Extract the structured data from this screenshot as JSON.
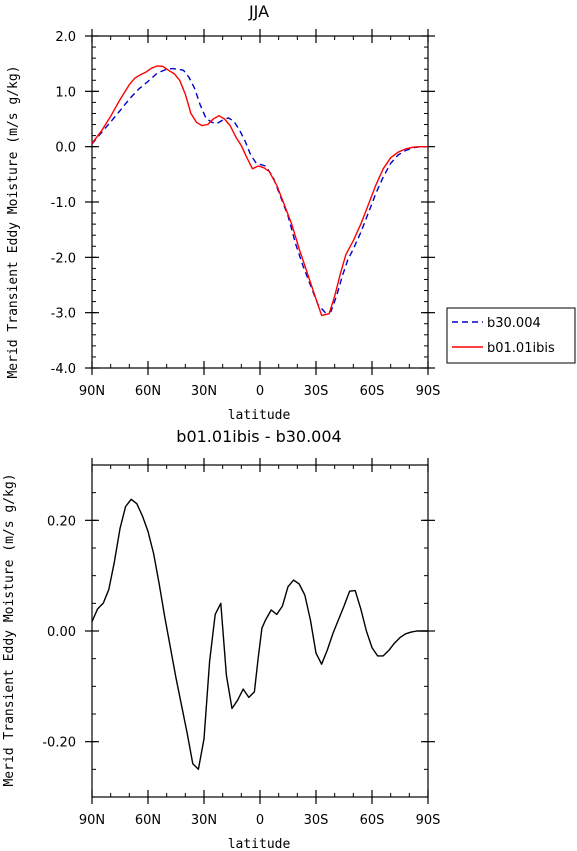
{
  "chart_data": [
    {
      "type": "line",
      "title": "JJA",
      "xlabel": "latitude",
      "ylabel": "Merid Transient Eddy Moisture (m/s g/kg)",
      "x_tick_labels": [
        "90N",
        "60N",
        "30N",
        "0",
        "30S",
        "60S",
        "90S"
      ],
      "x_tick_values": [
        -90,
        -60,
        -30,
        0,
        30,
        60,
        90
      ],
      "y_tick_labels": [
        "2.0",
        "1.0",
        "0.0",
        "-1.0",
        "-2.0",
        "-3.0",
        "-4.0"
      ],
      "y_tick_values": [
        2,
        1,
        0,
        -1,
        -2,
        -3,
        -4
      ],
      "xlim": [
        -90,
        90
      ],
      "ylim": [
        -4,
        2
      ],
      "grid": false,
      "legend_position": "right-outside",
      "series": [
        {
          "name": "b30.004",
          "color": "#0000cc",
          "dash": "dashed",
          "x": [
            -90,
            -85,
            -80,
            -75,
            -70,
            -65,
            -60,
            -55,
            -50,
            -47,
            -44,
            -41,
            -38,
            -35,
            -32,
            -29,
            -26,
            -23,
            -20,
            -17,
            -14,
            -11,
            -8,
            -5,
            -2,
            0,
            3,
            7,
            11,
            15,
            19,
            23,
            27,
            31,
            35,
            38,
            41,
            44,
            47,
            50,
            54,
            58,
            62,
            66,
            70,
            74,
            78,
            82,
            86,
            90
          ],
          "y": [
            0.05,
            0.25,
            0.45,
            0.65,
            0.86,
            1.04,
            1.18,
            1.33,
            1.4,
            1.41,
            1.4,
            1.38,
            1.25,
            1.05,
            0.75,
            0.52,
            0.44,
            0.42,
            0.48,
            0.52,
            0.46,
            0.3,
            0.1,
            -0.15,
            -0.3,
            -0.32,
            -0.35,
            -0.55,
            -0.9,
            -1.25,
            -1.75,
            -2.15,
            -2.5,
            -2.85,
            -3.0,
            -2.98,
            -2.7,
            -2.35,
            -2.05,
            -1.85,
            -1.55,
            -1.2,
            -0.85,
            -0.55,
            -0.3,
            -0.15,
            -0.07,
            -0.02,
            0.0,
            0.0
          ]
        },
        {
          "name": "b01.01ibis",
          "color": "#ff0000",
          "dash": "solid",
          "x": [
            -90,
            -85,
            -80,
            -75,
            -70,
            -67,
            -64,
            -61,
            -58,
            -55,
            -52,
            -49,
            -46,
            -43,
            -40,
            -37,
            -34,
            -31,
            -28,
            -25,
            -22,
            -19,
            -16,
            -13,
            -10,
            -7,
            -4,
            -1,
            2,
            5,
            9,
            13,
            17,
            21,
            25,
            29,
            33,
            37,
            40,
            43,
            46,
            50,
            54,
            58,
            62,
            66,
            70,
            74,
            78,
            82,
            86,
            90
          ],
          "y": [
            0.06,
            0.28,
            0.55,
            0.85,
            1.12,
            1.24,
            1.3,
            1.35,
            1.42,
            1.46,
            1.45,
            1.38,
            1.32,
            1.2,
            0.95,
            0.6,
            0.44,
            0.38,
            0.4,
            0.5,
            0.56,
            0.5,
            0.38,
            0.18,
            0.02,
            -0.2,
            -0.4,
            -0.35,
            -0.38,
            -0.45,
            -0.7,
            -1.05,
            -1.4,
            -1.85,
            -2.25,
            -2.65,
            -3.05,
            -3.02,
            -2.7,
            -2.3,
            -1.95,
            -1.7,
            -1.4,
            -1.05,
            -0.7,
            -0.4,
            -0.2,
            -0.1,
            -0.04,
            -0.01,
            0.0,
            0.0
          ]
        }
      ]
    },
    {
      "type": "line",
      "title": "b01.01ibis - b30.004",
      "xlabel": "latitude",
      "ylabel": "Merid Transient Eddy Moisture (m/s g/kg)",
      "x_tick_labels": [
        "90N",
        "60N",
        "30N",
        "0",
        "30S",
        "60S",
        "90S"
      ],
      "x_tick_values": [
        -90,
        -60,
        -30,
        0,
        30,
        60,
        90
      ],
      "y_tick_labels": [
        "0.20",
        "0.00",
        "-0.20"
      ],
      "y_tick_values": [
        0.2,
        0.0,
        -0.2
      ],
      "xlim": [
        -90,
        90
      ],
      "ylim": [
        -0.3,
        0.3
      ],
      "grid": false,
      "series": [
        {
          "color": "#000000",
          "dash": "solid",
          "x": [
            -90,
            -87,
            -84,
            -81,
            -78,
            -75,
            -72,
            -69,
            -66,
            -63,
            -60,
            -57,
            -54,
            -51,
            -48,
            -45,
            -42,
            -39,
            -36,
            -33,
            -30,
            -27,
            -24,
            -21,
            -18,
            -15,
            -12,
            -9,
            -6,
            -3,
            -1,
            1,
            3,
            6,
            9,
            12,
            15,
            18,
            21,
            24,
            27,
            30,
            33,
            36,
            39,
            42,
            45,
            48,
            51,
            54,
            57,
            60,
            63,
            66,
            69,
            72,
            75,
            78,
            81,
            84,
            87,
            90
          ],
          "y": [
            0.017,
            0.04,
            0.05,
            0.075,
            0.125,
            0.185,
            0.225,
            0.238,
            0.23,
            0.208,
            0.18,
            0.14,
            0.085,
            0.025,
            -0.03,
            -0.085,
            -0.135,
            -0.185,
            -0.24,
            -0.25,
            -0.195,
            -0.055,
            0.03,
            0.05,
            -0.08,
            -0.14,
            -0.125,
            -0.105,
            -0.12,
            -0.11,
            -0.05,
            0.005,
            0.02,
            0.038,
            0.03,
            0.045,
            0.08,
            0.092,
            0.085,
            0.065,
            0.02,
            -0.04,
            -0.06,
            -0.035,
            -0.005,
            0.02,
            0.045,
            0.072,
            0.073,
            0.04,
            0.0,
            -0.03,
            -0.045,
            -0.045,
            -0.035,
            -0.022,
            -0.012,
            -0.005,
            -0.002,
            0.0,
            0.0,
            0.0
          ]
        }
      ]
    }
  ]
}
